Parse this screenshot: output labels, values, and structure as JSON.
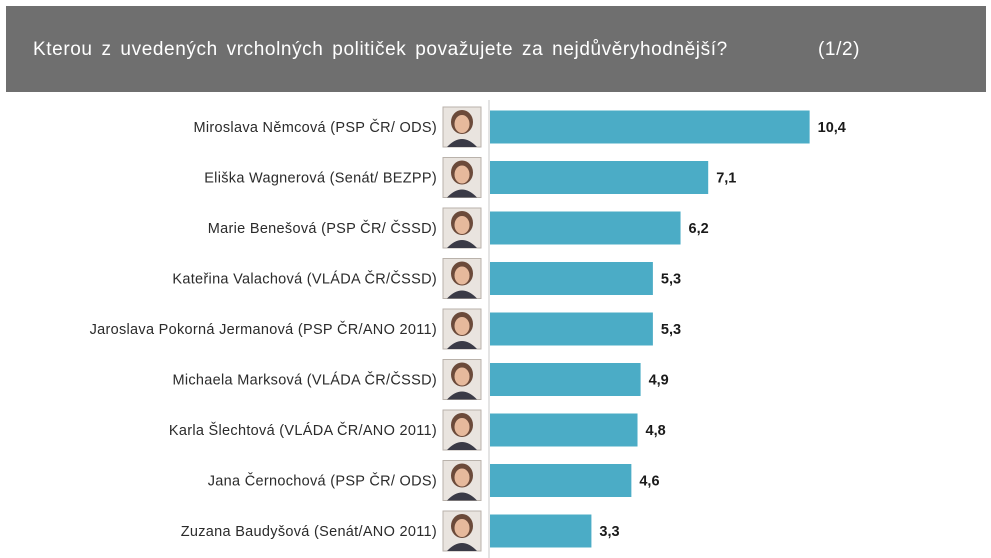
{
  "header": {
    "title": "Kterou z uvedených vrcholných političek považujete za nejdůvěryhodnější?",
    "page": "(1/2)"
  },
  "colors": {
    "header_bg": "#6f6f6f",
    "bar": "#4bacc6",
    "axis": "#c8c8c8"
  },
  "chart_data": {
    "type": "bar",
    "orientation": "horizontal",
    "title": "Kterou z uvedených vrcholných političek považujete za nejdůvěryhodnější?",
    "categories": [
      "Miroslava Němcová (PSP ČR/ ODS)",
      "Eliška Wagnerová (Senát/ BEZPP)",
      "Marie Benešová (PSP ČR/ ČSSD)",
      "Kateřina Valachová (VLÁDA ČR/ČSSD)",
      "Jaroslava Pokorná Jermanová (PSP ČR/ANO 2011)",
      "Michaela Marksová (VLÁDA ČR/ČSSD)",
      "Karla Šlechtová (VLÁDA ČR/ANO 2011)",
      "Jana Černochová (PSP ČR/ ODS)",
      "Zuzana Baudyšová (Senát/ANO 2011)"
    ],
    "values": [
      10.4,
      7.1,
      6.2,
      5.3,
      5.3,
      4.9,
      4.8,
      4.6,
      3.3
    ],
    "value_labels": [
      "10,4",
      "7,1",
      "6,2",
      "5,3",
      "5,3",
      "4,9",
      "4,8",
      "4,6",
      "3,3"
    ],
    "xlim": [
      0,
      15
    ],
    "grid": false,
    "legend": "none",
    "category_icons": [
      "portrait-photo",
      "portrait-photo",
      "portrait-photo",
      "portrait-photo",
      "portrait-photo",
      "portrait-photo",
      "portrait-photo",
      "portrait-photo",
      "portrait-photo"
    ]
  }
}
